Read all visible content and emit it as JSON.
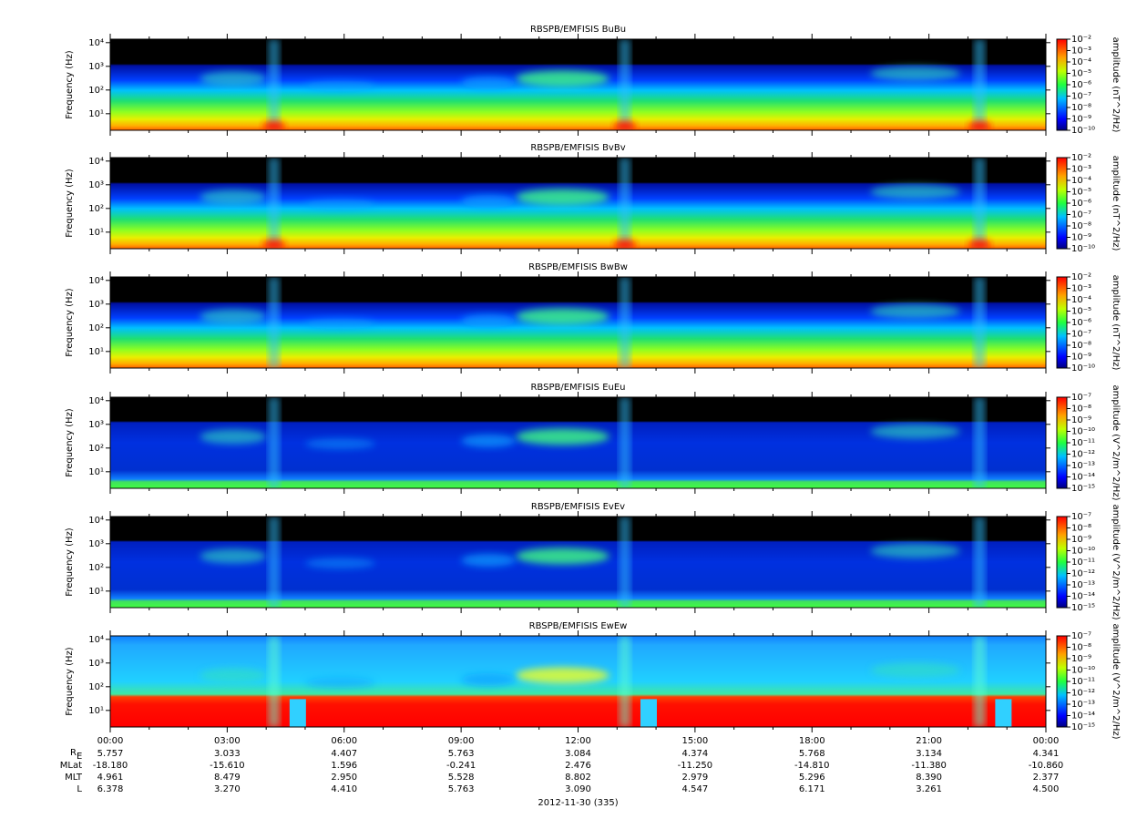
{
  "chart_data": [
    {
      "type": "spectrogram",
      "title": "RBSPB/EMFISIS  BuBu",
      "ylabel": "Frequency (Hz)",
      "log_y": true,
      "ylim": [
        2,
        14000
      ],
      "yticks": [
        {
          "value": 10,
          "label": "10¹"
        },
        {
          "value": 100,
          "label": "10²"
        },
        {
          "value": 1000,
          "label": "10³"
        },
        {
          "value": 10000,
          "label": "10⁴"
        }
      ],
      "colorbar_label": "amplitude (nT^2/Hz)",
      "clim": [
        1e-10,
        0.01
      ],
      "cticks": [
        {
          "value": 1e-10,
          "label": "10⁻¹⁰"
        },
        {
          "value": 1e-09,
          "label": "10⁻⁹"
        },
        {
          "value": 1e-08,
          "label": "10⁻⁸"
        },
        {
          "value": 1e-07,
          "label": "10⁻⁷"
        },
        {
          "value": 1e-06,
          "label": "10⁻⁶"
        },
        {
          "value": 1e-05,
          "label": "10⁻⁵"
        },
        {
          "value": 0.0001,
          "label": "10⁻⁴"
        },
        {
          "value": 0.001,
          "label": "10⁻³"
        },
        {
          "value": 0.01,
          "label": "10⁻²"
        }
      ]
    },
    {
      "type": "spectrogram",
      "title": "RBSPB/EMFISIS  BvBv",
      "ylabel": "Frequency (Hz)",
      "log_y": true,
      "ylim": [
        2,
        14000
      ],
      "yticks": [
        {
          "value": 10,
          "label": "10¹"
        },
        {
          "value": 100,
          "label": "10²"
        },
        {
          "value": 1000,
          "label": "10³"
        },
        {
          "value": 10000,
          "label": "10⁴"
        }
      ],
      "colorbar_label": "amplitude (nT^2/Hz)",
      "clim": [
        1e-10,
        0.01
      ],
      "cticks": [
        {
          "value": 1e-10,
          "label": "10⁻¹⁰"
        },
        {
          "value": 1e-09,
          "label": "10⁻⁹"
        },
        {
          "value": 1e-08,
          "label": "10⁻⁸"
        },
        {
          "value": 1e-07,
          "label": "10⁻⁷"
        },
        {
          "value": 1e-06,
          "label": "10⁻⁶"
        },
        {
          "value": 1e-05,
          "label": "10⁻⁵"
        },
        {
          "value": 0.0001,
          "label": "10⁻⁴"
        },
        {
          "value": 0.001,
          "label": "10⁻³"
        },
        {
          "value": 0.01,
          "label": "10⁻²"
        }
      ]
    },
    {
      "type": "spectrogram",
      "title": "RBSPB/EMFISIS  BwBw",
      "ylabel": "Frequency (Hz)",
      "log_y": true,
      "ylim": [
        2,
        14000
      ],
      "yticks": [
        {
          "value": 10,
          "label": "10¹"
        },
        {
          "value": 100,
          "label": "10²"
        },
        {
          "value": 1000,
          "label": "10³"
        },
        {
          "value": 10000,
          "label": "10⁴"
        }
      ],
      "colorbar_label": "amplitude (nT^2/Hz)",
      "clim": [
        1e-10,
        0.01
      ],
      "cticks": [
        {
          "value": 1e-10,
          "label": "10⁻¹⁰"
        },
        {
          "value": 1e-09,
          "label": "10⁻⁹"
        },
        {
          "value": 1e-08,
          "label": "10⁻⁸"
        },
        {
          "value": 1e-07,
          "label": "10⁻⁷"
        },
        {
          "value": 1e-06,
          "label": "10⁻⁶"
        },
        {
          "value": 1e-05,
          "label": "10⁻⁵"
        },
        {
          "value": 0.0001,
          "label": "10⁻⁴"
        },
        {
          "value": 0.001,
          "label": "10⁻³"
        },
        {
          "value": 0.01,
          "label": "10⁻²"
        }
      ]
    },
    {
      "type": "spectrogram",
      "title": "RBSPB/EMFISIS  EuEu",
      "ylabel": "Frequency (Hz)",
      "log_y": true,
      "ylim": [
        2,
        14000
      ],
      "yticks": [
        {
          "value": 10,
          "label": "10¹"
        },
        {
          "value": 100,
          "label": "10²"
        },
        {
          "value": 1000,
          "label": "10³"
        },
        {
          "value": 10000,
          "label": "10⁴"
        }
      ],
      "colorbar_label": "amplitude (V^2/m^2/Hz)",
      "clim": [
        1e-15,
        1e-07
      ],
      "cticks": [
        {
          "value": 1e-15,
          "label": "10⁻¹⁵"
        },
        {
          "value": 1e-14,
          "label": "10⁻¹⁴"
        },
        {
          "value": 1e-13,
          "label": "10⁻¹³"
        },
        {
          "value": 1e-12,
          "label": "10⁻¹²"
        },
        {
          "value": 1e-11,
          "label": "10⁻¹¹"
        },
        {
          "value": 1e-10,
          "label": "10⁻¹⁰"
        },
        {
          "value": 1e-09,
          "label": "10⁻⁹"
        },
        {
          "value": 1e-08,
          "label": "10⁻⁸"
        },
        {
          "value": 1e-07,
          "label": "10⁻⁷"
        }
      ]
    },
    {
      "type": "spectrogram",
      "title": "RBSPB/EMFISIS  EvEv",
      "ylabel": "Frequency (Hz)",
      "log_y": true,
      "ylim": [
        2,
        14000
      ],
      "yticks": [
        {
          "value": 10,
          "label": "10¹"
        },
        {
          "value": 100,
          "label": "10²"
        },
        {
          "value": 1000,
          "label": "10³"
        },
        {
          "value": 10000,
          "label": "10⁴"
        }
      ],
      "colorbar_label": "amplitude (V^2/m^2/Hz)",
      "clim": [
        1e-15,
        1e-07
      ],
      "cticks": [
        {
          "value": 1e-15,
          "label": "10⁻¹⁵"
        },
        {
          "value": 1e-14,
          "label": "10⁻¹⁴"
        },
        {
          "value": 1e-13,
          "label": "10⁻¹³"
        },
        {
          "value": 1e-12,
          "label": "10⁻¹²"
        },
        {
          "value": 1e-11,
          "label": "10⁻¹¹"
        },
        {
          "value": 1e-10,
          "label": "10⁻¹⁰"
        },
        {
          "value": 1e-09,
          "label": "10⁻⁹"
        },
        {
          "value": 1e-08,
          "label": "10⁻⁸"
        },
        {
          "value": 1e-07,
          "label": "10⁻⁷"
        }
      ]
    },
    {
      "type": "spectrogram",
      "title": "RBSPB/EMFISIS  EwEw",
      "ylabel": "Frequency (Hz)",
      "log_y": true,
      "ylim": [
        2,
        14000
      ],
      "yticks": [
        {
          "value": 10,
          "label": "10¹"
        },
        {
          "value": 100,
          "label": "10²"
        },
        {
          "value": 1000,
          "label": "10³"
        },
        {
          "value": 10000,
          "label": "10⁴"
        }
      ],
      "colorbar_label": "amplitude (V^2/m^2/Hz)",
      "clim": [
        1e-15,
        1e-07
      ],
      "cticks": [
        {
          "value": 1e-15,
          "label": "10⁻¹⁵"
        },
        {
          "value": 1e-14,
          "label": "10⁻¹⁴"
        },
        {
          "value": 1e-13,
          "label": "10⁻¹³"
        },
        {
          "value": 1e-12,
          "label": "10⁻¹²"
        },
        {
          "value": 1e-11,
          "label": "10⁻¹¹"
        },
        {
          "value": 1e-10,
          "label": "10⁻¹⁰"
        },
        {
          "value": 1e-09,
          "label": "10⁻⁹"
        },
        {
          "value": 1e-08,
          "label": "10⁻⁸"
        },
        {
          "value": 1e-07,
          "label": "10⁻⁷"
        }
      ]
    }
  ],
  "time_axis": {
    "xlim": [
      0,
      24
    ],
    "xticks": [
      {
        "value": 0,
        "label": "00:00"
      },
      {
        "value": 3,
        "label": "03:00"
      },
      {
        "value": 6,
        "label": "06:00"
      },
      {
        "value": 9,
        "label": "09:00"
      },
      {
        "value": 12,
        "label": "12:00"
      },
      {
        "value": 15,
        "label": "15:00"
      },
      {
        "value": 18,
        "label": "18:00"
      },
      {
        "value": 21,
        "label": "21:00"
      },
      {
        "value": 24,
        "label": "00:00"
      }
    ],
    "date_label": "2012-11-30 (335)"
  },
  "ephemeris": {
    "rows": [
      {
        "name": "R",
        "subscript": "E",
        "values": [
          "5.757",
          "3.033",
          "4.407",
          "5.763",
          "3.084",
          "4.374",
          "5.768",
          "3.134",
          "4.341"
        ]
      },
      {
        "name": "MLat",
        "values": [
          "-18.180",
          "-15.610",
          "1.596",
          "-0.241",
          "2.476",
          "-11.250",
          "-14.810",
          "-11.380",
          "-10.860"
        ]
      },
      {
        "name": "MLT",
        "values": [
          "4.961",
          "8.479",
          "2.950",
          "5.528",
          "8.802",
          "2.979",
          "5.296",
          "8.390",
          "2.377"
        ]
      },
      {
        "name": "L",
        "values": [
          "6.378",
          "3.270",
          "4.410",
          "5.763",
          "3.090",
          "4.547",
          "6.171",
          "3.261",
          "4.500"
        ]
      }
    ]
  }
}
